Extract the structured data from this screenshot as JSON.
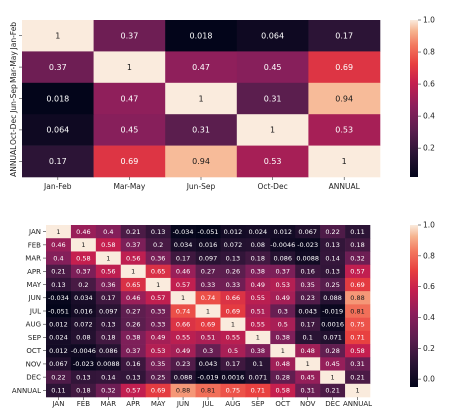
{
  "chart_data": [
    {
      "type": "heatmap",
      "title": "",
      "xlabel": "",
      "ylabel": "",
      "x_categories": [
        "Jan-Feb",
        "Mar-May",
        "Jun-Sep",
        "Oct-Dec",
        "ANNUAL"
      ],
      "y_categories": [
        "Jan-Feb",
        "Mar-May",
        "Jun-Sep",
        "Oct-Dec",
        "ANNUAL"
      ],
      "values": [
        [
          1,
          0.37,
          0.018,
          0.064,
          0.17
        ],
        [
          0.37,
          1,
          0.47,
          0.45,
          0.69
        ],
        [
          0.018,
          0.47,
          1,
          0.31,
          0.94
        ],
        [
          0.064,
          0.45,
          0.31,
          1,
          0.53
        ],
        [
          0.17,
          0.69,
          0.94,
          0.53,
          1
        ]
      ],
      "labels": [
        [
          "1",
          "0.37",
          "0.018",
          "0.064",
          "0.17"
        ],
        [
          "0.37",
          "1",
          "0.47",
          "0.45",
          "0.69"
        ],
        [
          "0.018",
          "0.47",
          "1",
          "0.31",
          "0.94"
        ],
        [
          "0.064",
          "0.45",
          "0.31",
          "1",
          "0.53"
        ],
        [
          "0.17",
          "0.69",
          "0.94",
          "0.53",
          "1"
        ]
      ],
      "colorbar": {
        "range": [
          0.02,
          1.0
        ],
        "ticks": [
          "1.0",
          "0.8",
          "0.6",
          "0.4",
          "0.2"
        ]
      }
    },
    {
      "type": "heatmap",
      "title": "",
      "xlabel": "",
      "ylabel": "",
      "x_categories": [
        "JAN",
        "FEB",
        "MAR",
        "APR",
        "MAY",
        "JUN",
        "JUL",
        "AUG",
        "SEP",
        "OCT",
        "NOV",
        "DEC",
        "ANNUAL"
      ],
      "y_categories": [
        "JAN",
        "FEB",
        "MAR",
        "APR",
        "MAY",
        "JUN",
        "JUL",
        "AUG",
        "SEP",
        "OCT",
        "NOV",
        "DEC",
        "ANNUAL"
      ],
      "values": [
        [
          1,
          0.46,
          0.4,
          0.21,
          0.13,
          -0.034,
          -0.051,
          0.012,
          0.024,
          0.012,
          0.067,
          0.22,
          0.11
        ],
        [
          0.46,
          1,
          0.58,
          0.37,
          0.2,
          0.034,
          0.016,
          0.072,
          0.08,
          -0.0046,
          -0.023,
          0.13,
          0.18
        ],
        [
          0.4,
          0.58,
          1,
          0.56,
          0.36,
          0.17,
          0.097,
          0.13,
          0.18,
          0.086,
          0.0088,
          0.14,
          0.32
        ],
        [
          0.21,
          0.37,
          0.56,
          1,
          0.65,
          0.46,
          0.27,
          0.26,
          0.38,
          0.37,
          0.16,
          0.13,
          0.57
        ],
        [
          0.13,
          0.2,
          0.36,
          0.65,
          1,
          0.57,
          0.33,
          0.33,
          0.49,
          0.53,
          0.35,
          0.25,
          0.69
        ],
        [
          -0.034,
          0.034,
          0.17,
          0.46,
          0.57,
          1,
          0.74,
          0.66,
          0.55,
          0.49,
          0.23,
          0.088,
          0.88
        ],
        [
          -0.051,
          0.016,
          0.097,
          0.27,
          0.33,
          0.74,
          1,
          0.69,
          0.51,
          0.3,
          0.043,
          -0.019,
          0.81
        ],
        [
          0.012,
          0.072,
          0.13,
          0.26,
          0.33,
          0.66,
          0.69,
          1,
          0.55,
          0.5,
          0.17,
          0.0016,
          0.75
        ],
        [
          0.024,
          0.08,
          0.18,
          0.38,
          0.49,
          0.55,
          0.51,
          0.55,
          1,
          0.38,
          0.1,
          0.071,
          0.71
        ],
        [
          0.012,
          -0.0046,
          0.086,
          0.37,
          0.53,
          0.49,
          0.3,
          0.5,
          0.38,
          1,
          0.48,
          0.28,
          0.58
        ],
        [
          0.067,
          -0.023,
          0.0088,
          0.16,
          0.35,
          0.23,
          0.043,
          0.17,
          0.1,
          0.48,
          1,
          0.45,
          0.31
        ],
        [
          0.22,
          0.13,
          0.14,
          0.13,
          0.25,
          0.088,
          -0.019,
          0.0016,
          0.071,
          0.28,
          0.45,
          1,
          0.21
        ],
        [
          0.11,
          0.18,
          0.32,
          0.57,
          0.69,
          0.88,
          0.81,
          0.75,
          0.71,
          0.58,
          0.31,
          0.21,
          1
        ]
      ],
      "labels": [
        [
          "1",
          "0.46",
          "0.4",
          "0.21",
          "0.13",
          "-0.034",
          "-0.051",
          "0.012",
          "0.024",
          "0.012",
          "0.067",
          "0.22",
          "0.11"
        ],
        [
          "0.46",
          "1",
          "0.58",
          "0.37",
          "0.2",
          "0.034",
          "0.016",
          "0.072",
          "0.08",
          "-0.0046",
          "-0.023",
          "0.13",
          "0.18"
        ],
        [
          "0.4",
          "0.58",
          "1",
          "0.56",
          "0.36",
          "0.17",
          "0.097",
          "0.13",
          "0.18",
          "0.086",
          "0.0088",
          "0.14",
          "0.32"
        ],
        [
          "0.21",
          "0.37",
          "0.56",
          "1",
          "0.65",
          "0.46",
          "0.27",
          "0.26",
          "0.38",
          "0.37",
          "0.16",
          "0.13",
          "0.57"
        ],
        [
          "0.13",
          "0.2",
          "0.36",
          "0.65",
          "1",
          "0.57",
          "0.33",
          "0.33",
          "0.49",
          "0.53",
          "0.35",
          "0.25",
          "0.69"
        ],
        [
          "-0.034",
          "0.034",
          "0.17",
          "0.46",
          "0.57",
          "1",
          "0.74",
          "0.66",
          "0.55",
          "0.49",
          "0.23",
          "0.088",
          "0.88"
        ],
        [
          "-0.051",
          "0.016",
          "0.097",
          "0.27",
          "0.33",
          "0.74",
          "1",
          "0.69",
          "0.51",
          "0.3",
          "0.043",
          "-0.019",
          "0.81"
        ],
        [
          "0.012",
          "0.072",
          "0.13",
          "0.26",
          "0.33",
          "0.66",
          "0.69",
          "1",
          "0.55",
          "0.5",
          "0.17",
          "0.0016",
          "0.75"
        ],
        [
          "0.024",
          "0.08",
          "0.18",
          "0.38",
          "0.49",
          "0.55",
          "0.51",
          "0.55",
          "1",
          "0.38",
          "0.1",
          "0.071",
          "0.71"
        ],
        [
          "0.012",
          "-0.0046",
          "0.086",
          "0.37",
          "0.53",
          "0.49",
          "0.3",
          "0.5",
          "0.38",
          "1",
          "0.48",
          "0.28",
          "0.58"
        ],
        [
          "0.067",
          "-0.023",
          "0.0088",
          "0.16",
          "0.35",
          "0.23",
          "0.043",
          "0.17",
          "0.1",
          "0.48",
          "1",
          "0.45",
          "0.31"
        ],
        [
          "0.22",
          "0.13",
          "0.14",
          "0.13",
          "0.25",
          "0.088",
          "-0.019",
          "0.0016",
          "0.071",
          "0.28",
          "0.45",
          "1",
          "0.21"
        ],
        [
          "0.11",
          "0.18",
          "0.32",
          "0.57",
          "0.69",
          "0.88",
          "0.81",
          "0.75",
          "0.71",
          "0.58",
          "0.31",
          "0.21",
          "1"
        ]
      ],
      "colorbar": {
        "range": [
          -0.051,
          1.0
        ],
        "ticks": [
          "1.0",
          "0.8",
          "0.6",
          "0.4",
          "0.2",
          "0.0"
        ]
      }
    }
  ]
}
